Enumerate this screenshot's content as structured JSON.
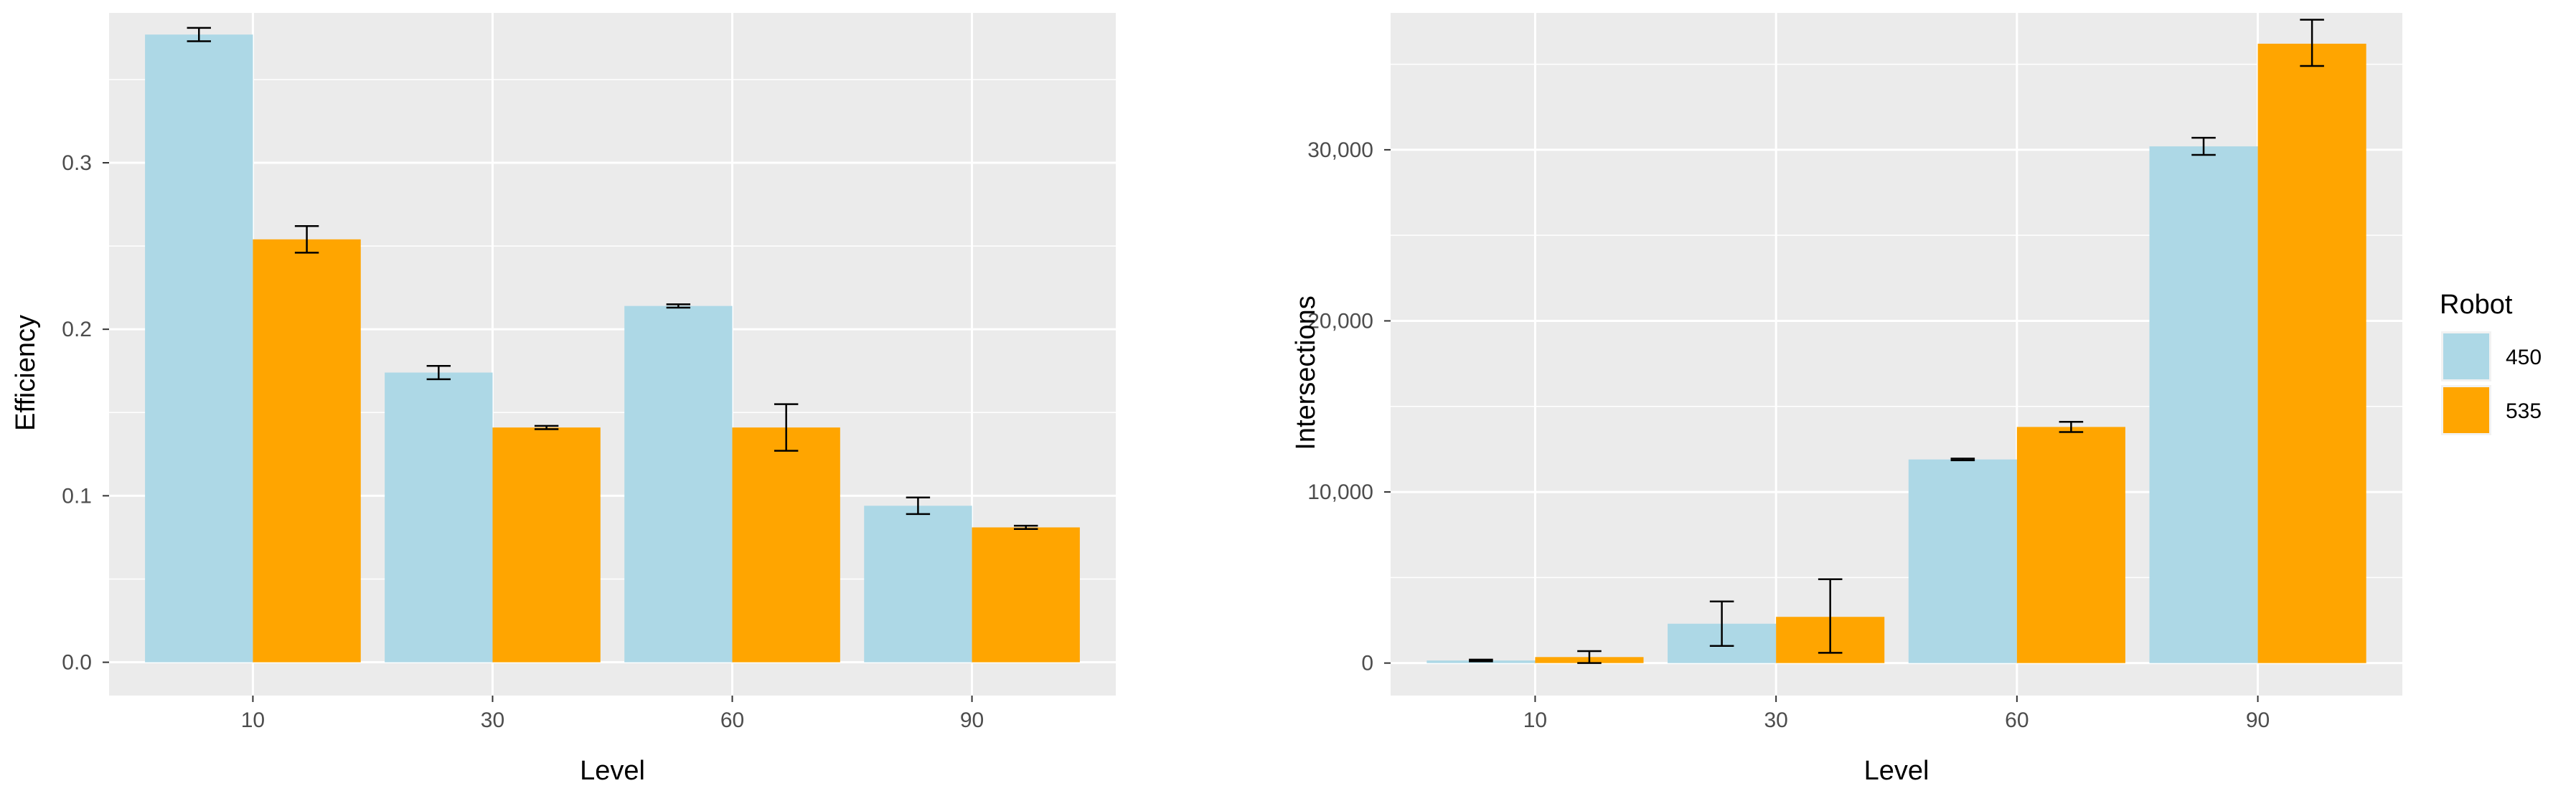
{
  "chart_data": [
    {
      "type": "bar",
      "xlabel": "Level",
      "ylabel": "Efficiency",
      "categories": [
        "10",
        "30",
        "60",
        "90"
      ],
      "ylim": [
        -0.02,
        0.39
      ],
      "yticks": [
        0.0,
        0.1,
        0.2,
        0.3
      ],
      "ytick_labels": [
        "0.0",
        "0.1",
        "0.2",
        "0.3"
      ],
      "grid": true,
      "series": [
        {
          "name": "450",
          "color": "#ADD8E6",
          "values": [
            0.377,
            0.174,
            0.214,
            0.094
          ],
          "err_low": [
            0.373,
            0.17,
            0.213,
            0.089
          ],
          "err_high": [
            0.381,
            0.178,
            0.215,
            0.099
          ]
        },
        {
          "name": "535",
          "color": "#FFA500",
          "values": [
            0.254,
            0.141,
            0.141,
            0.081
          ],
          "err_low": [
            0.246,
            0.14,
            0.127,
            0.08
          ],
          "err_high": [
            0.262,
            0.142,
            0.155,
            0.082
          ]
        }
      ]
    },
    {
      "type": "bar",
      "xlabel": "Level",
      "ylabel": "Intersections",
      "categories": [
        "10",
        "30",
        "60",
        "90"
      ],
      "ylim": [
        -1900,
        38000
      ],
      "yticks": [
        0,
        10000,
        20000,
        30000
      ],
      "ytick_labels": [
        "0",
        "10,000",
        "20,000",
        "30,000"
      ],
      "grid": true,
      "series": [
        {
          "name": "450",
          "color": "#ADD8E6",
          "values": [
            150,
            2300,
            11900,
            30200
          ],
          "err_low": [
            100,
            1000,
            11850,
            29700
          ],
          "err_high": [
            200,
            3600,
            11950,
            30700
          ]
        },
        {
          "name": "535",
          "color": "#FFA500",
          "values": [
            350,
            2700,
            13800,
            36200
          ],
          "err_low": [
            0,
            600,
            13500,
            34900
          ],
          "err_high": [
            700,
            4900,
            14100,
            37600
          ]
        }
      ]
    }
  ],
  "legend": {
    "title": "Robot",
    "position": "right",
    "items": [
      {
        "label": "450",
        "color": "#ADD8E6"
      },
      {
        "label": "535",
        "color": "#FFA500"
      }
    ]
  }
}
